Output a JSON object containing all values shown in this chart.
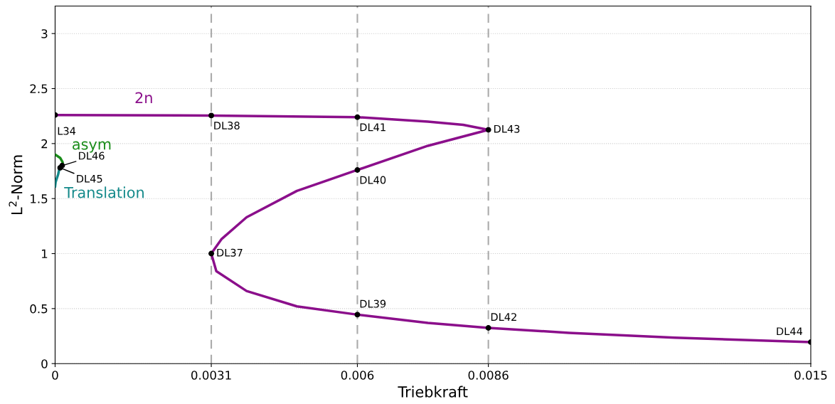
{
  "chart_data": {
    "type": "line",
    "xlabel": "Triebkraft",
    "ylabel": "L$^{2}$-Norm",
    "xlim": [
      0,
      0.015
    ],
    "ylim": [
      0,
      3.25
    ],
    "xticks": [
      0,
      0.0031,
      0.006,
      0.0086,
      0.015
    ],
    "yticks": [
      0,
      0.5,
      1,
      1.5,
      2,
      2.5,
      3
    ],
    "grid": "y",
    "series": [
      {
        "name": "2n",
        "color": "#8b0f8b",
        "x": [
          0,
          0.0031,
          0.006,
          0.0074,
          0.0081,
          0.0086,
          0.0074,
          0.006,
          0.0048,
          0.0038,
          0.0033,
          0.0031,
          0.0032,
          0.0038,
          0.0048,
          0.006,
          0.0074,
          0.0086,
          0.0102,
          0.0123,
          0.015
        ],
        "values": [
          2.26,
          2.255,
          2.24,
          2.2,
          2.17,
          2.125,
          1.98,
          1.76,
          1.57,
          1.33,
          1.13,
          1.0,
          0.84,
          0.66,
          0.52,
          0.445,
          0.37,
          0.325,
          0.28,
          0.235,
          0.195
        ]
      },
      {
        "name": "asym",
        "color": "#1a8c1a",
        "x": [
          0,
          0.0001,
          0.00015,
          0.00014
        ],
        "values": [
          1.9,
          1.87,
          1.83,
          1.8
        ]
      },
      {
        "name": "Translation",
        "color": "#14898a",
        "x": [
          9e-05,
          6e-05,
          1e-05,
          0
        ],
        "values": [
          1.78,
          1.72,
          1.65,
          1.61
        ]
      },
      {
        "type": "scatter",
        "color": "#000000",
        "x": [
          0,
          0.0031,
          0.006,
          0.0086,
          0.006,
          0.0031,
          0.006,
          0.0086,
          0.015,
          0.00014,
          0.0001
        ],
        "values": [
          2.26,
          2.255,
          2.24,
          2.125,
          1.76,
          1.0,
          0.445,
          0.325,
          0.195,
          1.8,
          1.78
        ]
      }
    ],
    "ref_lines": [
      {
        "axis": "x",
        "value": 0.0031,
        "color": "#aaaaaa",
        "line_style": "dashed"
      },
      {
        "axis": "x",
        "value": 0.006,
        "color": "#aaaaaa",
        "line_style": "dashed"
      },
      {
        "axis": "x",
        "value": 0.0086,
        "color": "#aaaaaa",
        "line_style": "dashed"
      }
    ],
    "annotations": [
      {
        "text": "L34",
        "x": 0,
        "y": 2.26
      },
      {
        "text": "DL38",
        "x": 0.0031,
        "y": 2.255
      },
      {
        "text": "DL41",
        "x": 0.006,
        "y": 2.24
      },
      {
        "text": "DL43",
        "x": 0.0086,
        "y": 2.125
      },
      {
        "text": "DL40",
        "x": 0.006,
        "y": 1.76
      },
      {
        "text": "DL37",
        "x": 0.0031,
        "y": 1.0
      },
      {
        "text": "DL39",
        "x": 0.006,
        "y": 0.445
      },
      {
        "text": "DL42",
        "x": 0.0086,
        "y": 0.325
      },
      {
        "text": "DL44",
        "x": 0.015,
        "y": 0.195
      },
      {
        "text": "DL46",
        "x": 0.00014,
        "y": 1.8
      },
      {
        "text": "DL45",
        "x": 0.0001,
        "y": 1.78
      }
    ]
  }
}
